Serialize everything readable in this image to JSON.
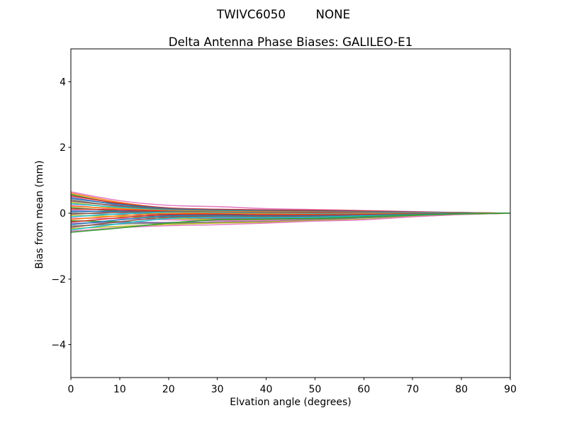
{
  "header": {
    "suptitle": "TWIVC6050        NONE"
  },
  "chart_data": {
    "type": "line",
    "title": "Delta Antenna Phase Biases: GALILEO-E1",
    "xlabel": "Elvation angle (degrees)",
    "ylabel": "Bias from mean (mm)",
    "xlim": [
      0,
      90
    ],
    "ylim": [
      -5,
      5
    ],
    "x_ticks": [
      0,
      10,
      20,
      30,
      40,
      50,
      60,
      70,
      80,
      90
    ],
    "y_ticks": [
      -4,
      -2,
      0,
      2,
      4
    ],
    "grid": false,
    "legend": "none",
    "background": "#ffffff",
    "spine_color": "#000000",
    "x": [
      0,
      10,
      20,
      30,
      40,
      50,
      60,
      70,
      80,
      90
    ],
    "series": [
      {
        "name": "line-01",
        "color": "#e377c2",
        "values": [
          0.65,
          0.38,
          0.24,
          0.2,
          0.14,
          0.11,
          0.08,
          0.05,
          0.02,
          0
        ]
      },
      {
        "name": "line-02",
        "color": "#ff7f0e",
        "values": [
          0.61,
          0.33,
          0.15,
          0.08,
          0.06,
          0.05,
          0.04,
          0.03,
          0.02,
          0
        ]
      },
      {
        "name": "line-03",
        "color": "#2ca02c",
        "values": [
          0.57,
          0.28,
          0.1,
          0.02,
          -0.02,
          -0.01,
          0.0,
          0.01,
          0.01,
          0
        ]
      },
      {
        "name": "line-04",
        "color": "#d62728",
        "values": [
          0.53,
          0.3,
          0.16,
          0.12,
          0.1,
          0.09,
          0.07,
          0.04,
          0.02,
          0
        ]
      },
      {
        "name": "line-05",
        "color": "#9467bd",
        "values": [
          0.49,
          0.24,
          0.06,
          -0.04,
          -0.08,
          -0.07,
          -0.05,
          -0.03,
          -0.01,
          0
        ]
      },
      {
        "name": "line-06",
        "color": "#1f77b4",
        "values": [
          0.45,
          0.27,
          0.14,
          0.1,
          0.08,
          0.07,
          0.05,
          0.03,
          0.01,
          0
        ]
      },
      {
        "name": "line-07",
        "color": "#7f7f7f",
        "values": [
          0.41,
          0.2,
          0.05,
          -0.02,
          -0.05,
          -0.06,
          -0.04,
          -0.02,
          -0.01,
          0
        ]
      },
      {
        "name": "line-08",
        "color": "#8c564b",
        "values": [
          0.37,
          0.22,
          0.12,
          0.09,
          0.07,
          0.06,
          0.04,
          0.02,
          0.01,
          0
        ]
      },
      {
        "name": "line-09",
        "color": "#bcbd22",
        "values": [
          0.33,
          0.15,
          0.02,
          -0.06,
          -0.1,
          -0.09,
          -0.06,
          -0.03,
          -0.01,
          0
        ]
      },
      {
        "name": "line-10",
        "color": "#17becf",
        "values": [
          0.29,
          0.18,
          0.1,
          0.07,
          0.05,
          0.04,
          0.03,
          0.02,
          0.01,
          0
        ]
      },
      {
        "name": "line-11",
        "color": "#e377c2",
        "values": [
          0.25,
          0.1,
          -0.02,
          -0.09,
          -0.12,
          -0.1,
          -0.07,
          -0.04,
          -0.02,
          0
        ]
      },
      {
        "name": "line-12",
        "color": "#ff7f0e",
        "values": [
          0.21,
          0.14,
          0.08,
          0.05,
          0.04,
          0.03,
          0.02,
          0.01,
          0.0,
          0
        ]
      },
      {
        "name": "line-13",
        "color": "#2ca02c",
        "values": [
          0.17,
          0.06,
          -0.05,
          -0.12,
          -0.14,
          -0.12,
          -0.08,
          -0.04,
          -0.02,
          0
        ]
      },
      {
        "name": "line-14",
        "color": "#d62728",
        "values": [
          0.13,
          0.1,
          0.06,
          0.03,
          0.02,
          0.02,
          0.01,
          0.01,
          0.0,
          0
        ]
      },
      {
        "name": "line-15",
        "color": "#9467bd",
        "values": [
          0.09,
          0.02,
          -0.08,
          -0.14,
          -0.16,
          -0.13,
          -0.09,
          -0.05,
          -0.02,
          0
        ]
      },
      {
        "name": "line-16",
        "color": "#1f77b4",
        "values": [
          0.05,
          0.06,
          0.04,
          0.01,
          0.0,
          0.0,
          0.0,
          0.0,
          0.0,
          0
        ]
      },
      {
        "name": "line-17",
        "color": "#7f7f7f",
        "values": [
          0.01,
          -0.04,
          -0.12,
          -0.17,
          -0.18,
          -0.15,
          -0.1,
          -0.06,
          -0.02,
          0
        ]
      },
      {
        "name": "line-18",
        "color": "#8c564b",
        "values": [
          -0.03,
          0.03,
          0.05,
          0.03,
          0.01,
          0.0,
          0.0,
          0.0,
          0.0,
          0
        ]
      },
      {
        "name": "line-19",
        "color": "#bcbd22",
        "values": [
          -0.07,
          -0.1,
          -0.16,
          -0.2,
          -0.2,
          -0.16,
          -0.11,
          -0.06,
          -0.03,
          0
        ]
      },
      {
        "name": "line-20",
        "color": "#17becf",
        "values": [
          -0.11,
          -0.02,
          0.03,
          0.02,
          0.0,
          -0.01,
          -0.01,
          0.0,
          0.0,
          0
        ]
      },
      {
        "name": "line-21",
        "color": "#e377c2",
        "values": [
          -0.15,
          -0.16,
          -0.2,
          -0.23,
          -0.22,
          -0.18,
          -0.12,
          -0.07,
          -0.03,
          0
        ]
      },
      {
        "name": "line-22",
        "color": "#ff7f0e",
        "values": [
          -0.19,
          -0.08,
          0.0,
          0.0,
          -0.02,
          -0.03,
          -0.02,
          -0.01,
          0.0,
          0
        ]
      },
      {
        "name": "line-23",
        "color": "#2ca02c",
        "values": [
          -0.23,
          -0.26,
          -0.3,
          -0.29,
          -0.26,
          -0.2,
          -0.13,
          -0.07,
          -0.03,
          0
        ]
      },
      {
        "name": "line-24",
        "color": "#d62728",
        "values": [
          -0.27,
          -0.14,
          -0.04,
          -0.03,
          -0.05,
          -0.05,
          -0.04,
          -0.02,
          -0.01,
          0
        ]
      },
      {
        "name": "line-25",
        "color": "#9467bd",
        "values": [
          -0.31,
          -0.28,
          -0.28,
          -0.27,
          -0.25,
          -0.2,
          -0.14,
          -0.08,
          -0.03,
          0
        ]
      },
      {
        "name": "line-26",
        "color": "#1f77b4",
        "values": [
          -0.35,
          -0.2,
          -0.08,
          -0.06,
          -0.08,
          -0.08,
          -0.06,
          -0.03,
          -0.01,
          0
        ]
      },
      {
        "name": "line-27",
        "color": "#7f7f7f",
        "values": [
          -0.39,
          -0.33,
          -0.3,
          -0.28,
          -0.26,
          -0.21,
          -0.14,
          -0.08,
          -0.03,
          0
        ]
      },
      {
        "name": "line-28",
        "color": "#8c564b",
        "values": [
          -0.43,
          -0.26,
          -0.12,
          -0.09,
          -0.1,
          -0.1,
          -0.07,
          -0.04,
          -0.02,
          0
        ]
      },
      {
        "name": "line-29",
        "color": "#bcbd22",
        "values": [
          -0.47,
          -0.4,
          -0.34,
          -0.3,
          -0.27,
          -0.22,
          -0.18,
          -0.1,
          -0.04,
          0
        ]
      },
      {
        "name": "line-30",
        "color": "#17becf",
        "values": [
          -0.51,
          -0.32,
          -0.16,
          -0.12,
          -0.13,
          -0.12,
          -0.08,
          -0.05,
          -0.02,
          0
        ]
      },
      {
        "name": "line-31",
        "color": "#e377c2",
        "values": [
          -0.55,
          -0.44,
          -0.38,
          -0.35,
          -0.3,
          -0.24,
          -0.2,
          -0.11,
          -0.04,
          0
        ]
      },
      {
        "name": "line-32",
        "color": "#2ca02c",
        "values": [
          -0.58,
          -0.45,
          -0.3,
          -0.2,
          -0.18,
          -0.16,
          -0.11,
          -0.06,
          -0.02,
          0
        ]
      }
    ]
  }
}
